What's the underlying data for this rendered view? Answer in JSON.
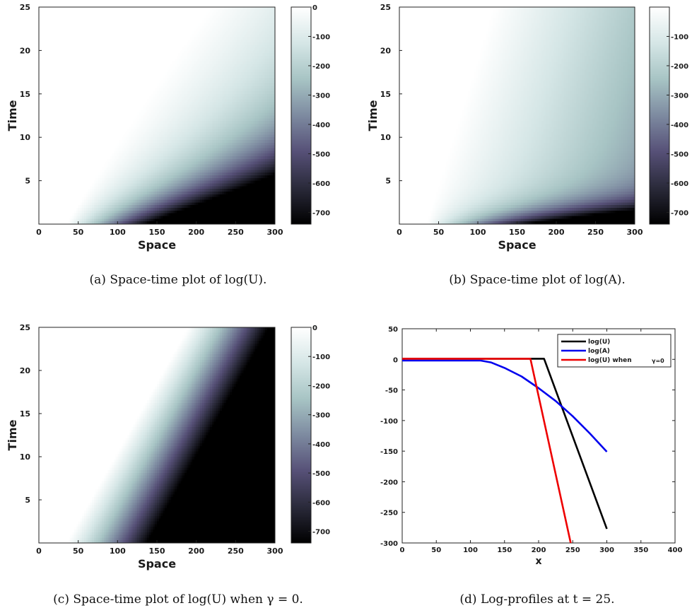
{
  "colormap": [
    "#000000",
    "#2a2a3a",
    "#565077",
    "#7d8aa0",
    "#a7c4c4",
    "#d5e6e6",
    "#ffffff"
  ],
  "chart_data": [
    {
      "type": "heatmap",
      "panel": "a",
      "caption": "(a) Space-time plot of log(U).",
      "xlabel": "Space",
      "ylabel": "Time",
      "xlim": [
        0,
        300
      ],
      "ylim": [
        0,
        25
      ],
      "xticks": [
        "0",
        "50",
        "100",
        "150",
        "200",
        "250",
        "300"
      ],
      "yticks": [
        "5",
        "10",
        "15",
        "20",
        "25"
      ],
      "zlim": [
        -740,
        0
      ],
      "colorbar_ticks": [
        "0",
        "-100",
        "-200",
        "-300",
        "-400",
        "-500",
        "-600",
        "-700"
      ],
      "model": "log(U)",
      "front_x_at_t": [
        [
          0,
          35
        ],
        [
          25,
          210
        ]
      ],
      "min_value_at_corner": -740
    },
    {
      "type": "heatmap",
      "panel": "b",
      "caption": "(b) Space-time plot of log(A).",
      "xlabel": "Space",
      "ylabel": "Time",
      "xlim": [
        0,
        300
      ],
      "ylim": [
        0,
        25
      ],
      "xticks": [
        "0",
        "50",
        "100",
        "150",
        "200",
        "250",
        "300"
      ],
      "yticks": [
        "5",
        "10",
        "15",
        "20",
        "25"
      ],
      "zlim": [
        -740,
        0
      ],
      "colorbar_ticks": [
        "-100",
        "-200",
        "-300",
        "-400",
        "-500",
        "-600",
        "-700"
      ],
      "model": "log(A)",
      "front_x_at_t": [
        [
          0,
          35
        ],
        [
          25,
          120
        ]
      ],
      "min_value_at_corner": -740
    },
    {
      "type": "heatmap",
      "panel": "c",
      "caption": "(c) Space-time plot of log(U) when γ = 0.",
      "xlabel": "Space",
      "ylabel": "Time",
      "xlim": [
        0,
        300
      ],
      "ylim": [
        0,
        25
      ],
      "xticks": [
        "0",
        "50",
        "100",
        "150",
        "200",
        "250",
        "300"
      ],
      "yticks": [
        "5",
        "10",
        "15",
        "20",
        "25"
      ],
      "zlim": [
        -740,
        0
      ],
      "colorbar_ticks": [
        "0",
        "-100",
        "-200",
        "-300",
        "-400",
        "-500",
        "-600",
        "-700"
      ],
      "model": "log(U) when γ=0",
      "front_x_at_t": [
        [
          0,
          35
        ],
        [
          25,
          190
        ]
      ],
      "min_value_at_corner": -740
    },
    {
      "type": "line",
      "panel": "d",
      "caption": "(d) Log-profiles at t = 25.",
      "xlabel": "x",
      "ylabel": "",
      "xlim": [
        0,
        400
      ],
      "ylim": [
        -300,
        50
      ],
      "xticks": [
        "0",
        "50",
        "100",
        "150",
        "200",
        "250",
        "300",
        "350",
        "400"
      ],
      "yticks": [
        "50",
        "0",
        "-50",
        "-100",
        "-150",
        "-200",
        "-250",
        "-300"
      ],
      "legend_position": "top-right",
      "series": [
        {
          "name": "log(U)",
          "color": "#000000",
          "x": [
            0,
            208,
            300
          ],
          "y": [
            1,
            1,
            -277
          ]
        },
        {
          "name": "log(A)",
          "color": "#0000ee",
          "x": [
            0,
            115,
            130,
            150,
            175,
            200,
            225,
            250,
            275,
            300
          ],
          "y": [
            -2,
            -2,
            -5,
            -14,
            -28,
            -47,
            -68,
            -93,
            -121,
            -151
          ]
        },
        {
          "name": "log(U) when",
          "legend_suffix": "γ=0",
          "color": "#ee0000",
          "x": [
            0,
            188,
            247
          ],
          "y": [
            1,
            1,
            -300
          ]
        }
      ]
    }
  ]
}
